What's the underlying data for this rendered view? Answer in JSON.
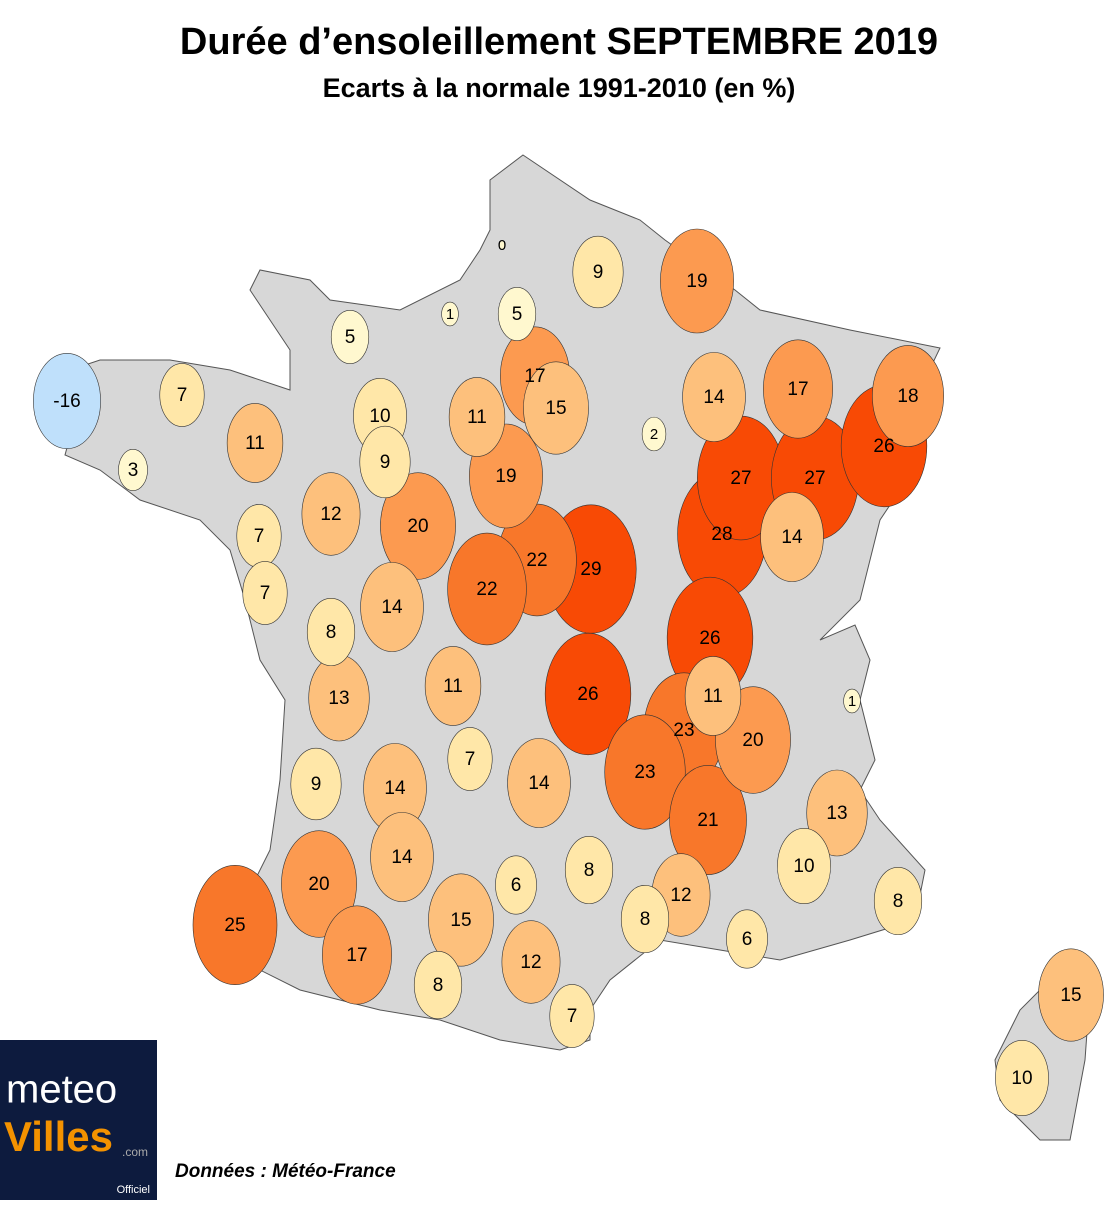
{
  "title": "Durée d’ensoleillement SEPTEMBRE 2019",
  "subtitle": "Ecarts à la normale 1991-2010 (en %)",
  "bubbles": [
    -16,
    7,
    11,
    3,
    5,
    1,
    0,
    9,
    5,
    19,
    17,
    15,
    10,
    9,
    11,
    19,
    14,
    17,
    18,
    26,
    2,
    27,
    27,
    12,
    7,
    20,
    22,
    29,
    22,
    28,
    14,
    7,
    14,
    8,
    26,
    13,
    11,
    26,
    11,
    1,
    23,
    20,
    9,
    7,
    14,
    14,
    23,
    21,
    13,
    14,
    10,
    20,
    6,
    8,
    12,
    8,
    25,
    15,
    8,
    6,
    17,
    12,
    8,
    7,
    15,
    10
  ],
  "source": "Données : Météo-France",
  "logo": {
    "word1": "meteo",
    "word2": "Villes",
    "domain": ".com",
    "tag": "Officiel"
  }
}
